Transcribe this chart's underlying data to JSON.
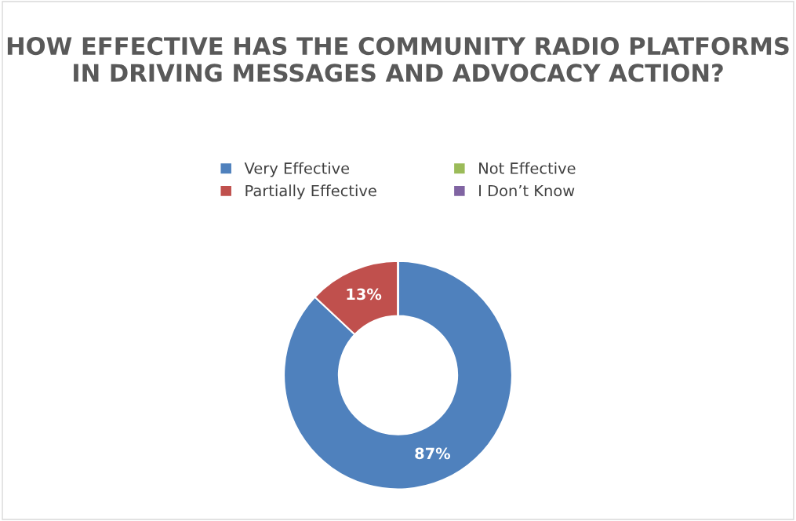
{
  "chart_data": {
    "type": "donut",
    "title": "HOW EFFECTIVE HAS THE COMMUNITY RADIO PLATFORMS IN DRIVING MESSAGES AND ADVOCACY ACTION?",
    "categories": [
      "Very Effective",
      "Partially Effective",
      "Not Effective",
      "I Don’t Know"
    ],
    "values": [
      87,
      13,
      0,
      0
    ],
    "colors": [
      "#4f81bd",
      "#c0504d",
      "#9bbb59",
      "#8064a2"
    ],
    "value_labels": [
      "87%",
      "13%",
      null,
      null
    ],
    "legend": "top"
  }
}
